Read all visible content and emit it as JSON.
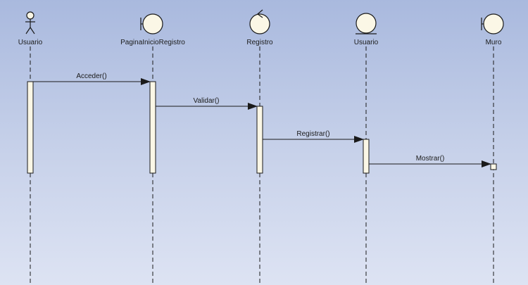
{
  "diagram": {
    "type": "sequence",
    "colors": {
      "lifeline": "#1a1a1a",
      "activation_fill": "#fbf7e6",
      "icon_fill": "#fbf7e6",
      "stroke": "#1a1a1a"
    },
    "participants": [
      {
        "id": "p1",
        "name": "Usuario",
        "kind": "actor",
        "icon": "actor-icon"
      },
      {
        "id": "p2",
        "name": "PaginaInicioRegistro",
        "kind": "boundary",
        "icon": "boundary-icon"
      },
      {
        "id": "p3",
        "name": "Registro",
        "kind": "control",
        "icon": "control-icon"
      },
      {
        "id": "p4",
        "name": "Usuario",
        "kind": "entity",
        "icon": "entity-icon"
      },
      {
        "id": "p5",
        "name": "Muro",
        "kind": "boundary",
        "icon": "boundary-icon"
      }
    ],
    "messages": [
      {
        "from": "p1",
        "to": "p2",
        "label": "Acceder()"
      },
      {
        "from": "p2",
        "to": "p3",
        "label": "Validar()"
      },
      {
        "from": "p3",
        "to": "p4",
        "label": "Registrar()"
      },
      {
        "from": "p4",
        "to": "p5",
        "label": "Mostrar()"
      }
    ]
  }
}
